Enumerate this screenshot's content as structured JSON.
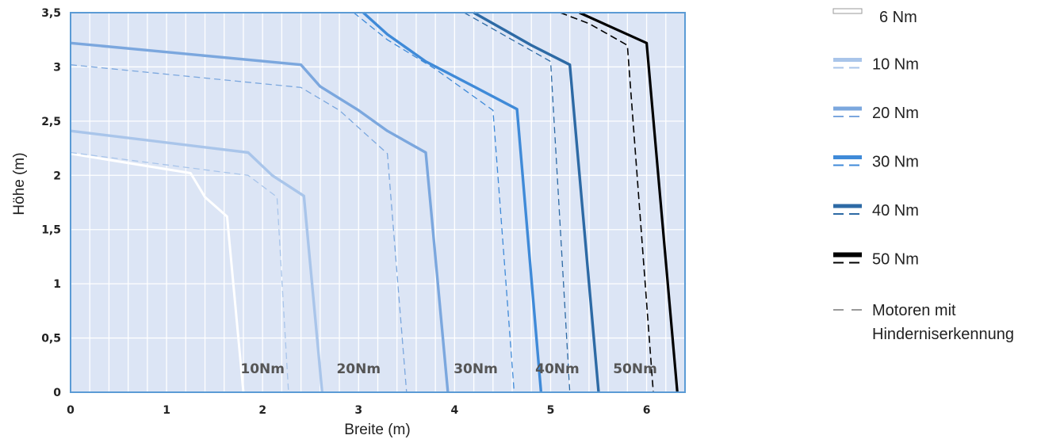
{
  "chart_data": {
    "type": "line",
    "xlabel": "Breite (m)",
    "ylabel": "Höhe (m)",
    "xlim": [
      0,
      6.4
    ],
    "ylim": [
      0,
      3.5
    ],
    "x_ticks": [
      "0",
      "1",
      "2",
      "3",
      "4",
      "5",
      "6"
    ],
    "y_ticks": [
      "0",
      "0,5",
      "1",
      "1,5",
      "2",
      "2,5",
      "3",
      "3,5"
    ],
    "grid": true,
    "legend_position": "right",
    "colors": {
      "plot_bg": "#dce5f5",
      "grid": "#ffffff",
      "frame": "#5b9bd5",
      "nm6": "#ffffff",
      "nm10": "#a9c5ea",
      "nm20": "#7ba7de",
      "nm30": "#3f8ad8",
      "nm40": "#2d6aa5",
      "nm50": "#000000",
      "motoren": "#9a9a9a"
    },
    "series": [
      {
        "name": "6 Nm",
        "style": "solid",
        "color_key": "nm6",
        "points": [
          [
            0,
            2.2
          ],
          [
            1.25,
            2.02
          ],
          [
            1.4,
            1.8
          ],
          [
            1.63,
            1.62
          ],
          [
            1.8,
            0
          ]
        ]
      },
      {
        "name": "10 Nm",
        "style": "solid",
        "color_key": "nm10",
        "points": [
          [
            0,
            2.41
          ],
          [
            1.85,
            2.21
          ],
          [
            2.1,
            2.0
          ],
          [
            2.43,
            1.81
          ],
          [
            2.62,
            0
          ]
        ]
      },
      {
        "name": "10 Nm",
        "style": "dashed",
        "color_key": "nm10",
        "points": [
          [
            0,
            2.21
          ],
          [
            1.85,
            2.0
          ],
          [
            2.15,
            1.8
          ],
          [
            2.27,
            0
          ]
        ]
      },
      {
        "name": "20 Nm",
        "style": "solid",
        "color_key": "nm20",
        "points": [
          [
            0,
            3.22
          ],
          [
            2.4,
            3.02
          ],
          [
            2.6,
            2.82
          ],
          [
            3.0,
            2.6
          ],
          [
            3.3,
            2.41
          ],
          [
            3.7,
            2.21
          ],
          [
            3.93,
            0
          ]
        ]
      },
      {
        "name": "20 Nm",
        "style": "dashed",
        "color_key": "nm20",
        "points": [
          [
            0,
            3.02
          ],
          [
            2.4,
            2.81
          ],
          [
            2.8,
            2.6
          ],
          [
            3.3,
            2.2
          ],
          [
            3.5,
            0
          ]
        ]
      },
      {
        "name": "30 Nm",
        "style": "solid",
        "color_key": "nm30",
        "points": [
          [
            3.05,
            3.5
          ],
          [
            3.3,
            3.3
          ],
          [
            3.7,
            3.05
          ],
          [
            4.2,
            2.82
          ],
          [
            4.65,
            2.61
          ],
          [
            4.9,
            0
          ]
        ]
      },
      {
        "name": "30 Nm",
        "style": "dashed",
        "color_key": "nm30",
        "points": [
          [
            2.95,
            3.5
          ],
          [
            3.3,
            3.25
          ],
          [
            3.8,
            2.98
          ],
          [
            4.4,
            2.6
          ],
          [
            4.62,
            0
          ]
        ]
      },
      {
        "name": "40 Nm",
        "style": "solid",
        "color_key": "nm40",
        "points": [
          [
            4.2,
            3.5
          ],
          [
            4.5,
            3.35
          ],
          [
            4.8,
            3.2
          ],
          [
            5.2,
            3.02
          ],
          [
            5.5,
            0
          ]
        ]
      },
      {
        "name": "40 Nm",
        "style": "dashed",
        "color_key": "nm40",
        "points": [
          [
            4.1,
            3.5
          ],
          [
            4.5,
            3.3
          ],
          [
            5.0,
            3.05
          ],
          [
            5.2,
            0
          ]
        ]
      },
      {
        "name": "50 Nm",
        "style": "solid",
        "color_key": "nm50",
        "points": [
          [
            5.3,
            3.5
          ],
          [
            5.55,
            3.4
          ],
          [
            6.0,
            3.22
          ],
          [
            6.32,
            0
          ]
        ]
      },
      {
        "name": "50 Nm",
        "style": "dashed",
        "color_key": "nm50",
        "points": [
          [
            5.1,
            3.5
          ],
          [
            5.4,
            3.4
          ],
          [
            5.8,
            3.2
          ],
          [
            6.07,
            0
          ]
        ]
      }
    ],
    "annotations": [
      {
        "text": "10Nm",
        "x": 2.0,
        "y": 0.22
      },
      {
        "text": "20Nm",
        "x": 3.0,
        "y": 0.22
      },
      {
        "text": "30Nm",
        "x": 4.22,
        "y": 0.22
      },
      {
        "text": "40Nm",
        "x": 5.07,
        "y": 0.22
      },
      {
        "text": "50Nm",
        "x": 5.88,
        "y": 0.22
      }
    ],
    "legend": [
      {
        "label": "6 Nm",
        "color_key": "nm6",
        "type": "outline"
      },
      {
        "label": "10 Nm",
        "color_key": "nm10",
        "type": "pair"
      },
      {
        "label": "20 Nm",
        "color_key": "nm20",
        "type": "pair"
      },
      {
        "label": "30 Nm",
        "color_key": "nm30",
        "type": "pair"
      },
      {
        "label": "40 Nm",
        "color_key": "nm40",
        "type": "pair"
      },
      {
        "label": "50 Nm",
        "color_key": "nm50",
        "type": "pair"
      },
      {
        "label": "Motoren mit",
        "label2": "Hinderniserkennung",
        "color_key": "motoren",
        "type": "dash"
      }
    ]
  }
}
